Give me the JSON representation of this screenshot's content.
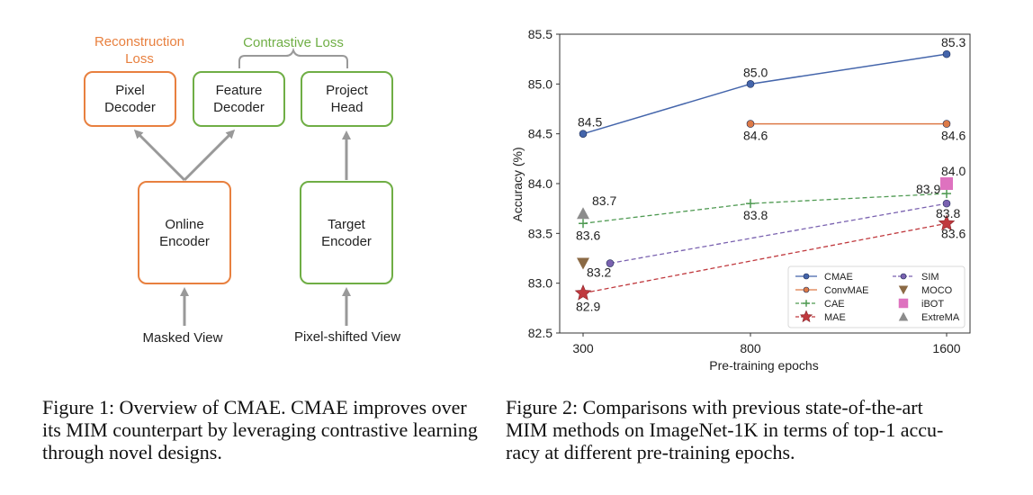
{
  "figure1": {
    "loss_recon": [
      "Reconstruction",
      "Loss"
    ],
    "loss_contrastive": "Contrastive Loss",
    "pixel_decoder": [
      "Pixel",
      "Decoder"
    ],
    "feature_decoder": [
      "Feature",
      "Decoder"
    ],
    "project_head": [
      "Project",
      "Head"
    ],
    "online_encoder": [
      "Online",
      "Encoder"
    ],
    "target_encoder": [
      "Target",
      "Encoder"
    ],
    "masked_view": "Masked View",
    "pixel_shifted_view": "Pixel-shifted View",
    "colors": {
      "orange": "#e8803f",
      "green": "#6fae45",
      "arrow": "#999999"
    }
  },
  "chart_data": {
    "type": "line",
    "title": "",
    "xlabel": "Pre-training epochs",
    "ylabel": "Accuracy (%)",
    "x_ticks": [
      "300",
      "800",
      "1600"
    ],
    "y_ticks": [
      "82.5",
      "83.0",
      "83.5",
      "84.0",
      "84.5",
      "85.0",
      "85.5"
    ],
    "ylim": [
      82.5,
      85.5
    ],
    "grid": false,
    "legend_position": "lower-right",
    "series": [
      {
        "name": "CMAE",
        "color": "#4465ab",
        "marker": "circle",
        "dash": false,
        "points": [
          {
            "x": 300,
            "y": 84.5,
            "label": "84.5"
          },
          {
            "x": 800,
            "y": 85.0,
            "label": "85.0"
          },
          {
            "x": 1600,
            "y": 85.3,
            "label": "85.3"
          }
        ]
      },
      {
        "name": "ConvMAE",
        "color": "#dd7a47",
        "marker": "circle",
        "dash": false,
        "points": [
          {
            "x": 800,
            "y": 84.6,
            "label": "84.6"
          },
          {
            "x": 1600,
            "y": 84.6,
            "label": "84.6"
          }
        ]
      },
      {
        "name": "CAE",
        "color": "#4f9a52",
        "marker": "plus",
        "dash": true,
        "points": [
          {
            "x": 300,
            "y": 83.6,
            "label": "83.6"
          },
          {
            "x": 800,
            "y": 83.8,
            "label": "83.8"
          },
          {
            "x": 1600,
            "y": 83.9,
            "label": "83.9"
          }
        ]
      },
      {
        "name": "MAE",
        "color": "#c0393e",
        "marker": "star",
        "dash": true,
        "points": [
          {
            "x": 300,
            "y": 82.9,
            "label": "82.9"
          },
          {
            "x": 1600,
            "y": 83.6,
            "label": "83.6"
          }
        ]
      },
      {
        "name": "SIM",
        "color": "#7a62b0",
        "marker": "circle",
        "dash": true,
        "points": [
          {
            "x": 400,
            "y": 83.2,
            "label": ""
          },
          {
            "x": 1600,
            "y": 83.8,
            "label": "83.8"
          }
        ]
      },
      {
        "name": "MOCO",
        "color": "#8b6a45",
        "marker": "triangle-down",
        "dash": false,
        "points": [
          {
            "x": 300,
            "y": 83.2,
            "label": "83.2"
          }
        ]
      },
      {
        "name": "iBOT",
        "color": "#de72bf",
        "marker": "square",
        "dash": false,
        "points": [
          {
            "x": 1600,
            "y": 84.0,
            "label": "84.0"
          }
        ]
      },
      {
        "name": "ExtreMA",
        "color": "#8c8c8c",
        "marker": "triangle-up",
        "dash": false,
        "points": [
          {
            "x": 300,
            "y": 83.7,
            "label": "83.7"
          }
        ]
      }
    ]
  },
  "captions": {
    "fig1": [
      "Figure 1: Overview of CMAE. CMAE improves over",
      "its MIM counterpart by leveraging contrastive learning",
      "through novel designs."
    ],
    "fig2": [
      "Figure 2: Comparisons with previous state-of-the-art",
      "MIM methods on ImageNet-1K in terms of top-1 accu-",
      "racy at different pre-training epochs."
    ]
  }
}
